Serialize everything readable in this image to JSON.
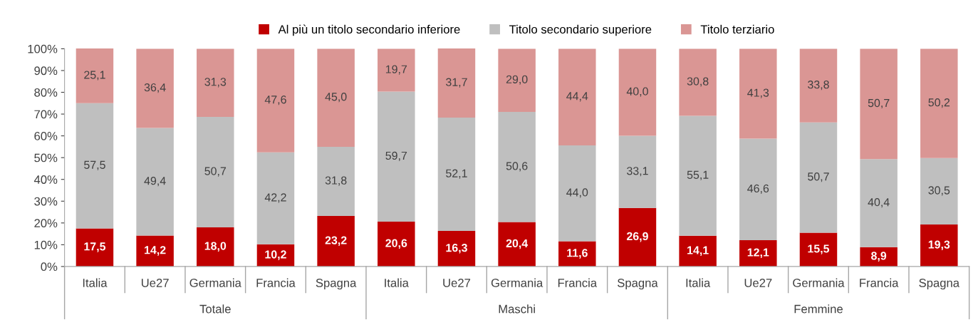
{
  "chart_data": {
    "type": "bar",
    "stacked": true,
    "categories": [
      "Italia",
      "Ue27",
      "Germania",
      "Francia",
      "Spagna",
      "Italia",
      "Ue27",
      "Germania",
      "Francia",
      "Spagna",
      "Italia",
      "Ue27",
      "Germania",
      "Francia",
      "Spagna"
    ],
    "series": [
      {
        "name": "Al più un titolo secondario inferiore",
        "color": "#c00000",
        "values": [
          17.5,
          14.2,
          18.0,
          10.2,
          23.2,
          20.6,
          16.3,
          20.4,
          11.6,
          26.9,
          14.1,
          12.1,
          15.5,
          8.9,
          19.3
        ],
        "value_labels": [
          "17,5",
          "14,2",
          "18,0",
          "10,2",
          "23,2",
          "20,6",
          "16,3",
          "20,4",
          "11,6",
          "26,9",
          "14,1",
          "12,1",
          "15,5",
          "8,9",
          "19,3"
        ]
      },
      {
        "name": "Titolo secondario superiore",
        "color": "#bfbfbf",
        "values": [
          57.5,
          49.4,
          50.7,
          42.2,
          31.8,
          59.7,
          52.1,
          50.6,
          44.0,
          33.1,
          55.1,
          46.6,
          50.7,
          40.4,
          30.5
        ],
        "value_labels": [
          "57,5",
          "49,4",
          "50,7",
          "42,2",
          "31,8",
          "59,7",
          "52,1",
          "50,6",
          "44,0",
          "33,1",
          "55,1",
          "46,6",
          "50,7",
          "40,4",
          "30,5"
        ]
      },
      {
        "name": "Titolo terziario",
        "color": "#da9694",
        "values": [
          25.1,
          36.4,
          31.3,
          47.6,
          45.0,
          19.7,
          31.7,
          29.0,
          44.4,
          40.0,
          30.8,
          41.3,
          33.8,
          50.7,
          50.2
        ],
        "value_labels": [
          "25,1",
          "36,4",
          "31,3",
          "47,6",
          "45,0",
          "19,7",
          "31,7",
          "29,0",
          "44,4",
          "40,0",
          "30,8",
          "41,3",
          "33,8",
          "50,7",
          "50,2"
        ]
      }
    ],
    "ylim": [
      0,
      100
    ],
    "yticks": [
      {
        "value": 0,
        "label": "0%"
      },
      {
        "value": 10,
        "label": "10%"
      },
      {
        "value": 20,
        "label": "20%"
      },
      {
        "value": 30,
        "label": "30%"
      },
      {
        "value": 40,
        "label": "40%"
      },
      {
        "value": 50,
        "label": "50%"
      },
      {
        "value": 60,
        "label": "60%"
      },
      {
        "value": 70,
        "label": "70%"
      },
      {
        "value": 80,
        "label": "80%"
      },
      {
        "value": 90,
        "label": "90%"
      },
      {
        "value": 100,
        "label": "100%"
      }
    ],
    "annotations": [
      "Totale",
      "Maschi",
      "Femmine"
    ],
    "legend": "top",
    "grid": false
  }
}
